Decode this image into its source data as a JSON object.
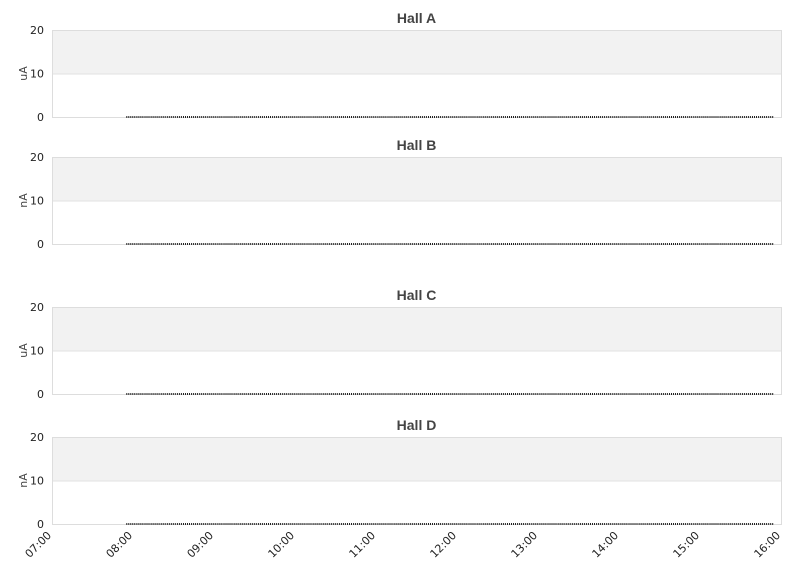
{
  "chart_data": [
    {
      "type": "scatter",
      "title": "Hall A",
      "ylabel": "uA",
      "ylim": [
        0,
        20
      ],
      "yticks": [
        "0",
        "10",
        "20"
      ],
      "grid": true,
      "band_color": "#f2f2f2",
      "series": [
        {
          "x_start": "07:55",
          "x_end": "15:54",
          "interval_minutes": 1.5,
          "value": 0,
          "color": "#222222"
        }
      ]
    },
    {
      "type": "scatter",
      "title": "Hall B",
      "ylabel": "nA",
      "ylim": [
        0,
        20
      ],
      "yticks": [
        "0",
        "10",
        "20"
      ],
      "grid": true,
      "band_color": "#f2f2f2",
      "series": [
        {
          "x_start": "07:55",
          "x_end": "15:54",
          "interval_minutes": 1.5,
          "value": 0,
          "color": "#222222"
        }
      ]
    },
    {
      "type": "scatter",
      "title": "Hall C",
      "ylabel": "uA",
      "ylim": [
        0,
        20
      ],
      "yticks": [
        "0",
        "10",
        "20"
      ],
      "grid": true,
      "band_color": "#f2f2f2",
      "series": [
        {
          "x_start": "07:55",
          "x_end": "15:54",
          "interval_minutes": 1.5,
          "value": 0,
          "color": "#222222"
        }
      ]
    },
    {
      "type": "scatter",
      "title": "Hall D",
      "ylabel": "nA",
      "ylim": [
        0,
        20
      ],
      "yticks": [
        "0",
        "10",
        "20"
      ],
      "grid": true,
      "band_color": "#f2f2f2",
      "series": [
        {
          "x_start": "07:55",
          "x_end": "15:54",
          "interval_minutes": 1.5,
          "value": 0,
          "color": "#222222"
        }
      ]
    }
  ],
  "xaxis": {
    "range": [
      "07:00",
      "16:00"
    ],
    "ticks": [
      "07:00",
      "08:00",
      "09:00",
      "10:00",
      "11:00",
      "12:00",
      "13:00",
      "14:00",
      "15:00",
      "16:00"
    ]
  }
}
